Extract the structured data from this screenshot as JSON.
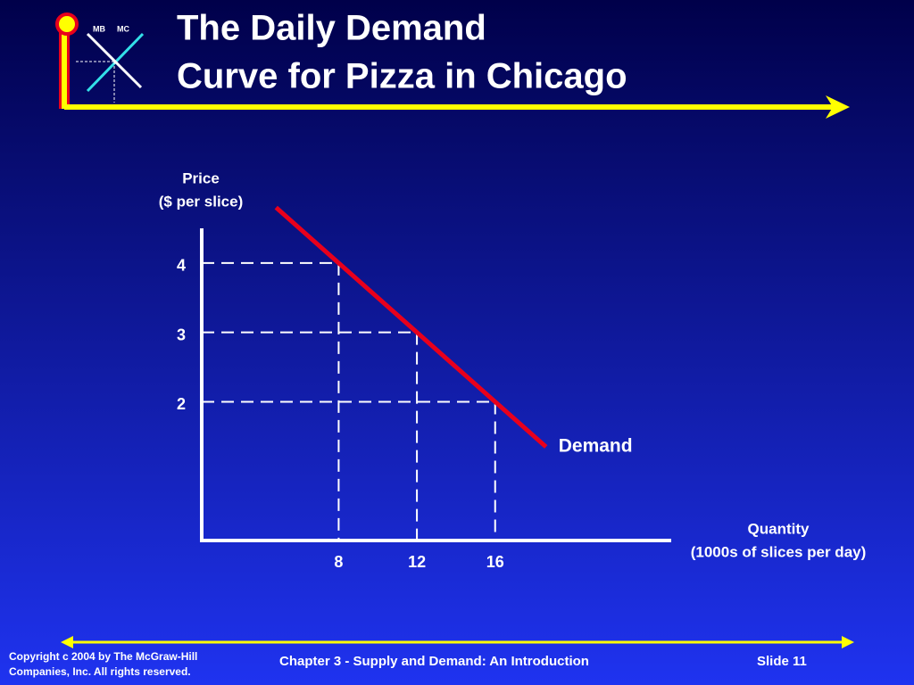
{
  "header": {
    "title_lines": [
      "The Daily Demand",
      "Curve for Pizza in Chicago"
    ],
    "logo_labels": [
      "MB",
      "MC"
    ]
  },
  "chart_data": {
    "type": "line",
    "y_label_lines": [
      "Price",
      "($ per slice)"
    ],
    "x_label_lines": [
      "Quantity",
      "(1000s of slices per day)"
    ],
    "series": [
      {
        "name": "Demand",
        "color": "#e8001c",
        "x": [
          4.8,
          8,
          12,
          16,
          18.6
        ],
        "values": [
          4.8,
          4,
          3,
          2,
          1.35
        ]
      }
    ],
    "xlim": [
      1,
      25
    ],
    "xticks": [
      8,
      12,
      16
    ],
    "ylim": [
      0,
      4.5
    ],
    "yticks": [
      2,
      3,
      4
    ]
  },
  "footer": {
    "copyright_lines": [
      "Copyright c 2004 by The McGraw-Hill",
      "Companies, Inc.  All rights reserved."
    ],
    "chapter": "Chapter 3 - Supply and Demand:  An Introduction",
    "slide": "Slide 11"
  }
}
